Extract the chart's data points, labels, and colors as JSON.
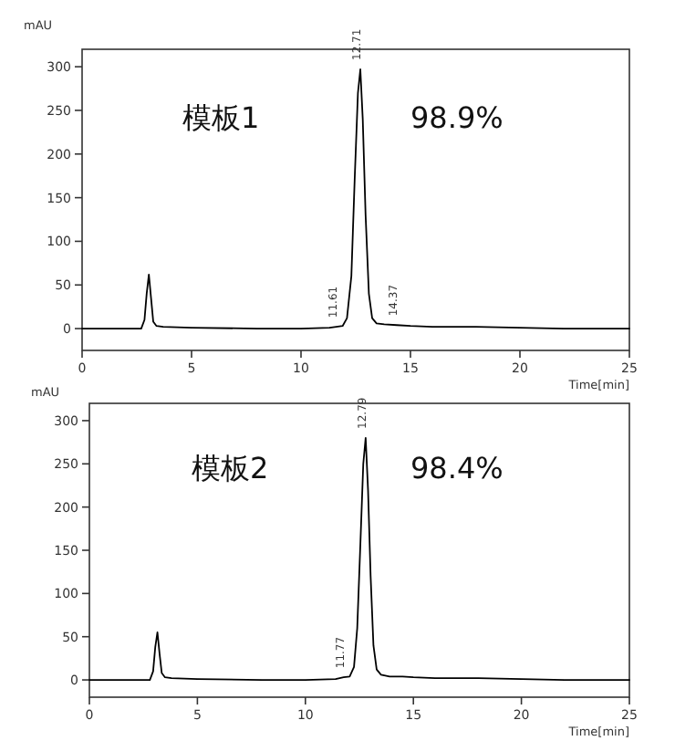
{
  "chart_data": [
    {
      "type": "line",
      "xlabel": "Time[min]",
      "ylabel": "mAU",
      "xlim": [
        0,
        25
      ],
      "ylim": [
        -25,
        320
      ],
      "xticks": [
        0,
        5,
        10,
        15,
        20,
        25
      ],
      "yticks": [
        0,
        50,
        100,
        150,
        200,
        250,
        300
      ],
      "series": [
        {
          "color": "#000000",
          "x": [
            0,
            2.7,
            2.85,
            2.95,
            3.05,
            3.15,
            3.25,
            3.4,
            3.7,
            5,
            8,
            10,
            11.3,
            11.61,
            11.9,
            12.1,
            12.3,
            12.45,
            12.6,
            12.71,
            12.82,
            12.95,
            13.1,
            13.25,
            13.45,
            13.8,
            14.37,
            15,
            16,
            18,
            20,
            22,
            25
          ],
          "values": [
            0,
            0,
            10,
            40,
            62,
            35,
            8,
            3,
            2,
            1,
            0,
            0,
            1,
            2,
            3,
            12,
            60,
            170,
            270,
            297,
            240,
            130,
            40,
            12,
            6,
            5,
            4,
            3,
            2,
            2,
            1,
            0,
            0
          ]
        }
      ],
      "annotations": [
        "模板1",
        "98.9%",
        {
          "text": "11.61",
          "x": 11.61,
          "y": 2
        },
        {
          "text": "12.71",
          "x": 12.71,
          "y": 297
        },
        {
          "text": "14.37",
          "x": 14.37,
          "y": 4
        }
      ]
    },
    {
      "type": "line",
      "xlabel": "Time[min]",
      "ylabel": "mAU",
      "xlim": [
        0,
        25
      ],
      "ylim": [
        -20,
        320
      ],
      "xticks": [
        0,
        5,
        10,
        15,
        20,
        25
      ],
      "yticks": [
        0,
        50,
        100,
        150,
        200,
        250,
        300
      ],
      "series": [
        {
          "color": "#000000",
          "x": [
            0,
            2.8,
            2.95,
            3.05,
            3.15,
            3.25,
            3.35,
            3.5,
            3.8,
            5,
            8,
            10,
            11.4,
            11.77,
            12.05,
            12.25,
            12.4,
            12.55,
            12.68,
            12.79,
            12.9,
            13.02,
            13.15,
            13.3,
            13.5,
            13.9,
            14.5,
            15,
            16,
            18,
            20,
            22,
            25
          ],
          "values": [
            0,
            0,
            10,
            38,
            55,
            30,
            8,
            3,
            2,
            1,
            0,
            0,
            1,
            3,
            4,
            15,
            60,
            160,
            250,
            280,
            220,
            120,
            40,
            12,
            6,
            4,
            4,
            3,
            2,
            2,
            1,
            0,
            0
          ]
        }
      ],
      "annotations": [
        "模板2",
        "98.4%",
        {
          "text": "11.77",
          "x": 11.77,
          "y": 3
        },
        {
          "text": "12.79",
          "x": 12.79,
          "y": 280
        }
      ]
    }
  ]
}
